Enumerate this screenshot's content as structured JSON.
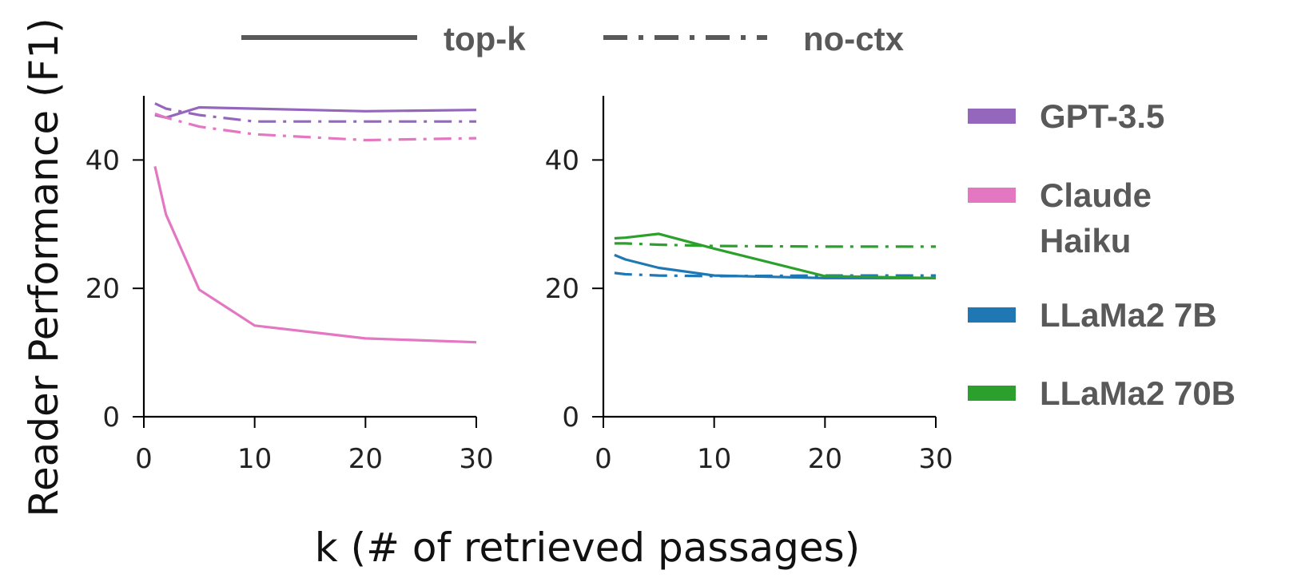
{
  "chart_data": [
    {
      "type": "line",
      "panel": "left",
      "title": "",
      "xlabel": "k (# of retrieved passages)",
      "ylabel": "Reader Performance (F1)",
      "xlim": [
        0,
        30
      ],
      "ylim": [
        0,
        50
      ],
      "xticks": [
        "0",
        "10",
        "20",
        "30"
      ],
      "yticks": [
        "0",
        "20",
        "40"
      ],
      "series": [
        {
          "name": "GPT-3.5",
          "style": "top-k",
          "color": "#9467bd",
          "x": [
            1,
            2,
            5,
            10,
            20,
            30
          ],
          "values": [
            47.0,
            46.6,
            48.2,
            48.0,
            47.6,
            47.8
          ]
        },
        {
          "name": "GPT-3.5",
          "style": "no-ctx",
          "color": "#9467bd",
          "x": [
            1,
            2,
            5,
            10,
            20,
            30
          ],
          "values": [
            48.8,
            48.0,
            47.0,
            46.0,
            46.0,
            46.0
          ]
        },
        {
          "name": "Claude Haiku",
          "style": "top-k",
          "color": "#e377c2",
          "x": [
            1,
            2,
            5,
            10,
            20,
            30
          ],
          "values": [
            39.0,
            31.5,
            19.8,
            14.2,
            12.2,
            11.6
          ]
        },
        {
          "name": "Claude Haiku",
          "style": "no-ctx",
          "color": "#e377c2",
          "x": [
            1,
            2,
            5,
            10,
            20,
            30
          ],
          "values": [
            47.2,
            46.6,
            45.2,
            44.0,
            43.1,
            43.4
          ]
        }
      ]
    },
    {
      "type": "line",
      "panel": "right",
      "title": "",
      "xlabel": "k (# of retrieved passages)",
      "ylabel": "",
      "xlim": [
        0,
        30
      ],
      "ylim": [
        0,
        50
      ],
      "xticks": [
        "0",
        "10",
        "20",
        "30"
      ],
      "yticks": [
        "0",
        "20",
        "40"
      ],
      "series": [
        {
          "name": "LLaMa2 7B",
          "style": "top-k",
          "color": "#1f77b4",
          "x": [
            1,
            2,
            5,
            10,
            20,
            30
          ],
          "values": [
            25.2,
            24.5,
            23.2,
            22.0,
            21.6,
            21.6
          ]
        },
        {
          "name": "LLaMa2 7B",
          "style": "no-ctx",
          "color": "#1f77b4",
          "x": [
            1,
            2,
            5,
            10,
            20,
            30
          ],
          "values": [
            22.4,
            22.2,
            22.0,
            21.9,
            22.0,
            22.0
          ]
        },
        {
          "name": "LLaMa2 70B",
          "style": "top-k",
          "color": "#2ca02c",
          "x": [
            1,
            2,
            5,
            10,
            20,
            30
          ],
          "values": [
            27.8,
            27.9,
            28.5,
            26.2,
            21.9,
            21.6
          ]
        },
        {
          "name": "LLaMa2 70B",
          "style": "no-ctx",
          "color": "#2ca02c",
          "x": [
            1,
            2,
            5,
            10,
            20,
            30
          ],
          "values": [
            27.0,
            27.0,
            26.8,
            26.6,
            26.5,
            26.5
          ]
        }
      ]
    }
  ],
  "style_legend": [
    {
      "label": "top-k",
      "style": "top-k"
    },
    {
      "label": "no-ctx",
      "style": "no-ctx"
    }
  ],
  "model_legend": [
    {
      "lines": [
        "GPT-3.5"
      ],
      "color": "#9467bd"
    },
    {
      "lines": [
        "Claude",
        "Haiku"
      ],
      "color": "#e377c2"
    },
    {
      "lines": [
        "LLaMa2 7B"
      ],
      "color": "#1f77b4"
    },
    {
      "lines": [
        "LLaMa2 70B"
      ],
      "color": "#2ca02c"
    }
  ],
  "colors": {
    "axis": "#000000",
    "legend_line": "#595959"
  }
}
